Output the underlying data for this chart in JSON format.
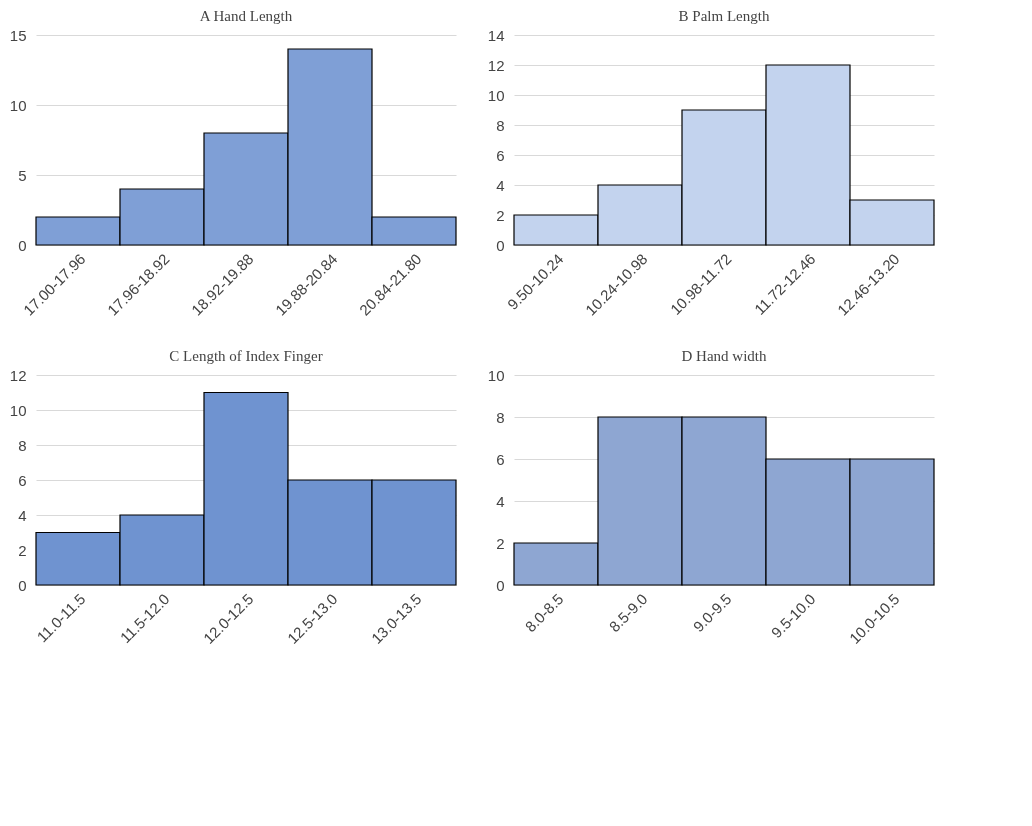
{
  "chart_data": [
    {
      "type": "bar",
      "title": "A Hand Length",
      "categories": [
        "17.00-17.96",
        "17.96-18.92",
        "18.92-19.88",
        "19.88-20.84",
        "20.84-21.80"
      ],
      "values": [
        2,
        4,
        8,
        14,
        2
      ],
      "color": "#7f9fd6",
      "ylim": [
        0,
        15
      ],
      "yticks": [
        0,
        5,
        10,
        15
      ],
      "grid": "y"
    },
    {
      "type": "bar",
      "title": "B Palm Length",
      "categories": [
        "9.50-10.24",
        "10.24-10.98",
        "10.98-11.72",
        "11.72-12.46",
        "12.46-13.20"
      ],
      "values": [
        2,
        4,
        9,
        12,
        3
      ],
      "color": "#c3d3ee",
      "ylim": [
        0,
        14
      ],
      "yticks": [
        0,
        2,
        4,
        6,
        8,
        10,
        12,
        14
      ],
      "grid": "y"
    },
    {
      "type": "bar",
      "title": "C Length of Index Finger",
      "categories": [
        "11.0-11.5",
        "11.5-12.0",
        "12.0-12.5",
        "12.5-13.0",
        "13.0-13.5"
      ],
      "values": [
        3,
        4,
        11,
        6,
        6
      ],
      "color": "#6f93d0",
      "ylim": [
        0,
        12
      ],
      "yticks": [
        0,
        2,
        4,
        6,
        8,
        10,
        12
      ],
      "grid": "y"
    },
    {
      "type": "bar",
      "title": "D Hand width",
      "categories": [
        "8.0-8.5",
        "8.5-9.0",
        "9.0-9.5",
        "9.5-10.0",
        "10.0-10.5"
      ],
      "values": [
        2,
        8,
        8,
        6,
        6
      ],
      "color": "#8ea6d2",
      "ylim": [
        0,
        10
      ],
      "yticks": [
        0,
        2,
        4,
        6,
        8,
        10
      ],
      "grid": "y"
    }
  ]
}
